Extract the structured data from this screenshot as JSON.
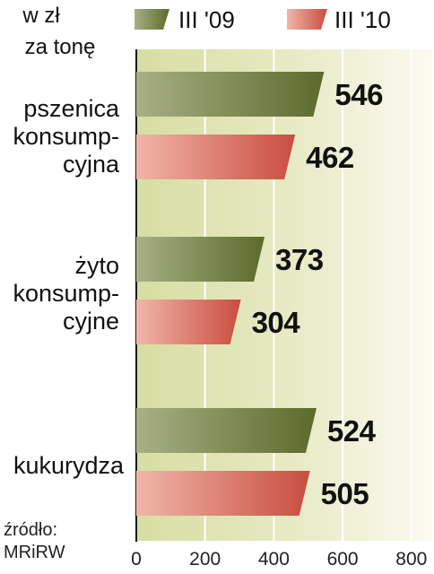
{
  "chart_data": {
    "type": "bar",
    "orientation": "horizontal",
    "unit_lines": [
      "w zł",
      "za tonę"
    ],
    "categories": [
      [
        "pszenica",
        "konsump-",
        "cyjna"
      ],
      [
        "żyto",
        "konsump-",
        "cyjne"
      ],
      [
        "kukurydza"
      ]
    ],
    "series": [
      {
        "name": "III '09",
        "values": [
          546,
          373,
          524
        ],
        "color": "#6e7a3f"
      },
      {
        "name": "III '10",
        "values": [
          462,
          304,
          505
        ],
        "color": "#d35f52"
      }
    ],
    "value_labels": [
      [
        "546",
        "373",
        "524"
      ],
      [
        "462",
        "304",
        "505"
      ]
    ],
    "x_ticks": [
      0,
      200,
      400,
      600,
      800
    ],
    "xlim": [
      0,
      800
    ],
    "grid": true,
    "legend_position": "top",
    "source_lines": [
      "źródło:",
      "MRiRW"
    ]
  }
}
